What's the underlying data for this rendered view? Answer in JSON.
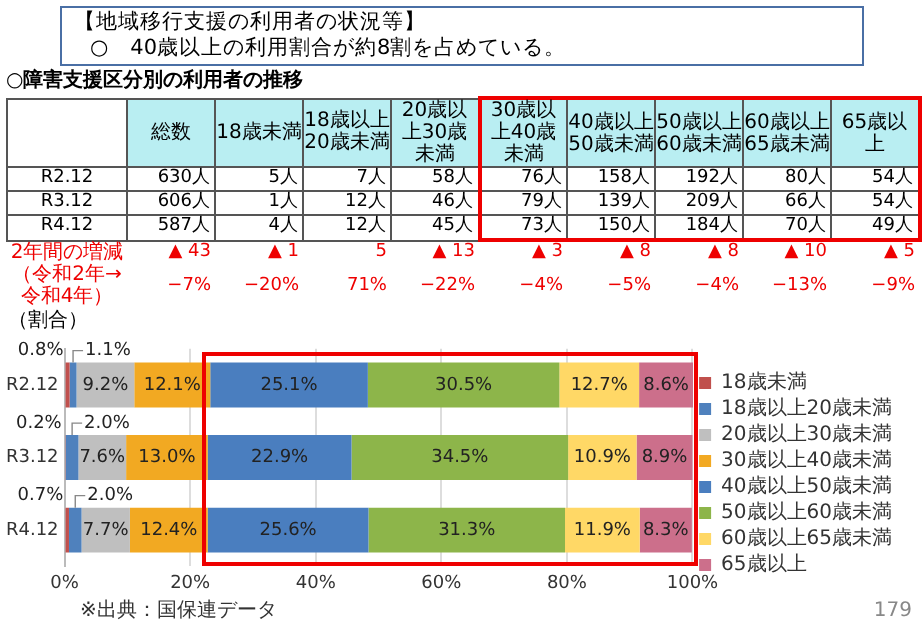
{
  "chart_data": [
    {
      "type": "other",
      "title": "【地域移行支援の利用者の状況等】",
      "subtitle": "○　40歳以上の利用割合が約8割を占めている。"
    },
    {
      "type": "other",
      "title": "○障害支援区分別の利用者の推移",
      "categories": [
        null,
        "総数",
        "18歳未満",
        "18歳以上20歳未満",
        "20歳以上30歳未満",
        "30歳以上40歳未満",
        "40歳以上50歳未満",
        "50歳以上60歳未満",
        "60歳以上65歳未満",
        "65歳以上"
      ],
      "y_categories": [
        "R2.12",
        "R3.12",
        "R4.12",
        "2年間の増減",
        "（令和2年→令和4年）"
      ],
      "cell_labels": [
        [
          "630人",
          "5人",
          "7人",
          "58人",
          "76人",
          "158人",
          "192人",
          "80人",
          "54人"
        ],
        [
          "606人",
          "1人",
          "12人",
          "46人",
          "79人",
          "139人",
          "209人",
          "66人",
          "54人"
        ],
        [
          "587人",
          "4人",
          "12人",
          "45人",
          "73人",
          "150人",
          "184人",
          "70人",
          "49人"
        ],
        [
          "▲ 43",
          "▲ 1",
          "5",
          "▲ 13",
          "▲ 3",
          "▲ 8",
          "▲ 8",
          "▲ 10",
          "▲ 5"
        ],
        [
          "−7%",
          "−20%",
          "71%",
          "−22%",
          "−4%",
          "−5%",
          "−4%",
          "−13%",
          "−9%"
        ]
      ]
    },
    {
      "type": "bar",
      "orientation": "horizontal",
      "stacked": true,
      "ylabel": "（割合）",
      "categories": [
        "R2.12",
        "R3.12",
        "R4.12"
      ],
      "xlim": [
        0,
        100.1
      ],
      "xticks": [
        {
          "value": 0,
          "label": "0%"
        },
        {
          "value": 20,
          "label": "20%"
        },
        {
          "value": 40,
          "label": "40%"
        },
        {
          "value": 60,
          "label": "60%"
        },
        {
          "value": 80,
          "label": "80%"
        },
        {
          "value": 100,
          "label": "100%"
        }
      ],
      "grid": "x",
      "legend": "right",
      "annotations": [
        "※出典：国保連データ",
        "179"
      ],
      "series": [
        {
          "name": "18歳未満",
          "color": "#c0504d",
          "values": [
            0.8,
            0.2,
            0.7
          ],
          "value_labels": [
            "0.8%",
            "0.2%",
            "0.7%"
          ]
        },
        {
          "name": "18歳以上20歳未満",
          "color": "#4f81bd",
          "values": [
            1.1,
            2.0,
            2.0
          ],
          "value_labels": [
            "1.1%",
            "2.0%",
            "2.0%"
          ]
        },
        {
          "name": "20歳以上30歳未満",
          "color": "#bfbfbf",
          "values": [
            9.2,
            7.6,
            7.7
          ],
          "value_labels": [
            "9.2%",
            "7.6%",
            "7.7%"
          ]
        },
        {
          "name": "30歳以上40歳未満",
          "color": "#f2a922",
          "values": [
            12.1,
            13.0,
            12.4
          ],
          "value_labels": [
            "12.1%",
            "13.0%",
            "12.4%"
          ]
        },
        {
          "name": "40歳以上50歳未満",
          "color": "#4a7ebf",
          "values": [
            25.1,
            22.9,
            25.6
          ],
          "value_labels": [
            "25.1%",
            "22.9%",
            "25.6%"
          ]
        },
        {
          "name": "50歳以上60歳未満",
          "color": "#8db54a",
          "values": [
            30.5,
            34.5,
            31.3
          ],
          "value_labels": [
            "30.5%",
            "34.5%",
            "31.3%"
          ]
        },
        {
          "name": "60歳以上65歳未満",
          "color": "#ffd866",
          "values": [
            12.7,
            10.9,
            11.9
          ],
          "value_labels": [
            "12.7%",
            "10.9%",
            "11.9%"
          ]
        },
        {
          "name": "65歳以上",
          "color": "#cc6f8b",
          "values": [
            8.6,
            8.9,
            8.3
          ],
          "value_labels": [
            "8.6%",
            "8.9%",
            "8.3%"
          ]
        }
      ]
    }
  ]
}
